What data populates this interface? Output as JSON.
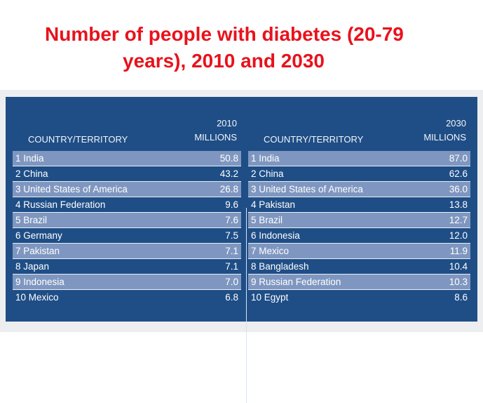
{
  "title": {
    "line1": "Number of people with diabetes (20-79",
    "line2": "years), 2010 and 2030"
  },
  "table_2010": {
    "country_header": "COUNTRY/TERRITORY",
    "year": "2010",
    "unit": "MILLIONS",
    "rows": [
      {
        "label": "1 India",
        "value": "50.8"
      },
      {
        "label": "2 China",
        "value": "43.2"
      },
      {
        "label": "3 United States of America",
        "value": "26.8"
      },
      {
        "label": "4 Russian Federation",
        "value": "9.6"
      },
      {
        "label": "5 Brazil",
        "value": "7.6"
      },
      {
        "label": "6 Germany",
        "value": "7.5"
      },
      {
        "label": "7 Pakistan",
        "value": "7.1"
      },
      {
        "label": "8 Japan",
        "value": "7.1"
      },
      {
        "label": "9 Indonesia",
        "value": "7.0"
      },
      {
        "label": "10 Mexico",
        "value": "6.8"
      }
    ]
  },
  "table_2030": {
    "country_header": "COUNTRY/TERRITORY",
    "year": "2030",
    "unit": "MILLIONS",
    "rows": [
      {
        "label": "1 India",
        "value": "87.0"
      },
      {
        "label": "2 China",
        "value": "62.6"
      },
      {
        "label": "3 United States of America",
        "value": "36.0"
      },
      {
        "label": "4 Pakistan",
        "value": "13.8"
      },
      {
        "label": "5 Brazil",
        "value": "12.7"
      },
      {
        "label": "6 Indonesia",
        "value": "12.0"
      },
      {
        "label": "7 Mexico",
        "value": "11.9"
      },
      {
        "label": "8 Bangladesh",
        "value": "10.4"
      },
      {
        "label": "9 Russian Federation",
        "value": "10.3"
      },
      {
        "label": "10 Egypt",
        "value": "8.6"
      }
    ]
  },
  "colors": {
    "title": "#e8121c",
    "panel": "#1f4e86",
    "alt_row": "#7f97c0"
  }
}
